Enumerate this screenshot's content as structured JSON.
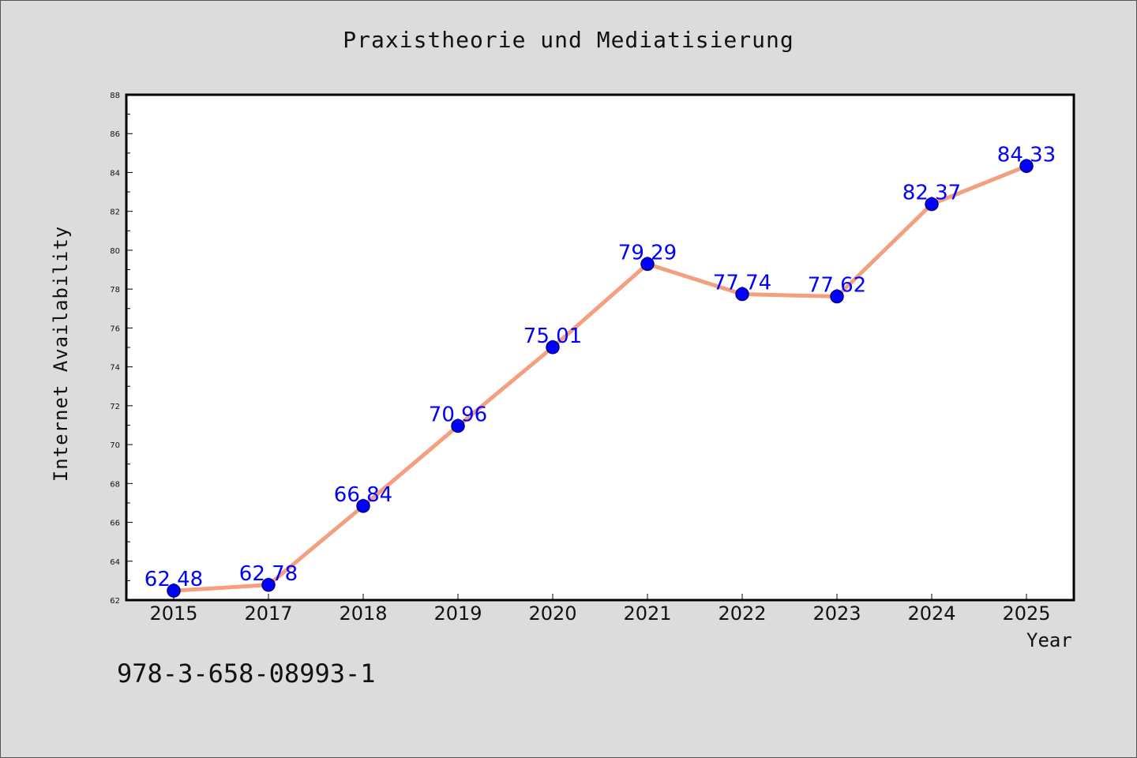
{
  "chart_data": {
    "type": "line",
    "title": "Praxistheorie und Mediatisierung",
    "xlabel": "Year",
    "ylabel": "Internet Availability",
    "categories": [
      "2015",
      "2017",
      "2018",
      "2019",
      "2020",
      "2021",
      "2022",
      "2023",
      "2024",
      "2025"
    ],
    "series": [
      {
        "values": [
          62.48,
          62.78,
          66.84,
          70.96,
          75.01,
          79.29,
          77.74,
          77.62,
          82.37,
          84.33
        ],
        "data_labels": [
          "62.48",
          "62.78",
          "66.84",
          "70.96",
          "75.01",
          "79.29",
          "77.74",
          "77.62",
          "82.37",
          "84.33"
        ]
      }
    ],
    "ylim": [
      62,
      88
    ],
    "y_ticks": [
      "62",
      "64",
      "66",
      "68",
      "70",
      "72",
      "74",
      "76",
      "78",
      "80",
      "82",
      "84",
      "86",
      "88"
    ],
    "grid": false,
    "legend": "none",
    "colors": {
      "line": "#f4a080",
      "marker": "#0000ff",
      "marker_edge": "#00007a",
      "data_label": "#0000ff",
      "background": "#dcdcdc",
      "plot_background": "#ffffff"
    }
  },
  "footer_text": "978-3-658-08993-1"
}
